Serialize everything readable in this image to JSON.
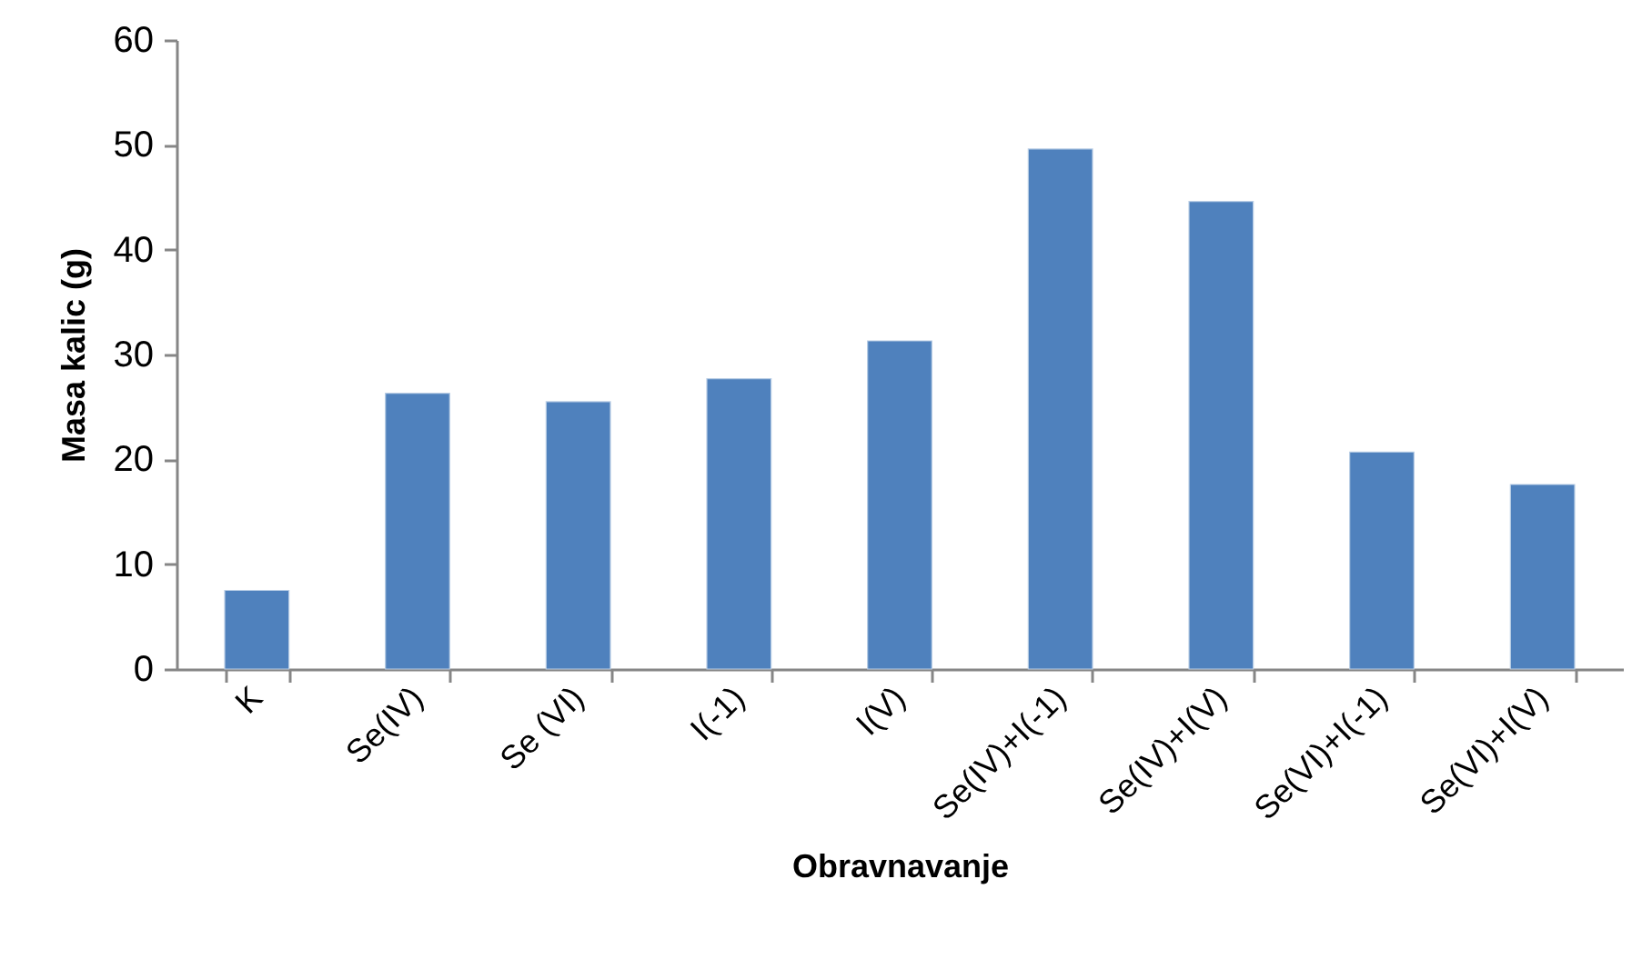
{
  "chart_data": {
    "type": "bar",
    "xlabel": "Obravnavanje",
    "ylabel": "Masa kalic (g)",
    "categories": [
      "K",
      "Se(IV)",
      "Se (VI)",
      "I(-1)",
      "I(V)",
      "Se(IV)+I(-1)",
      "Se(IV)+I(V)",
      "Se(VI)+I(-1)",
      "Se(VI)+I(V)"
    ],
    "values": [
      7.5,
      26.3,
      25.5,
      27.7,
      31.3,
      49.6,
      44.6,
      20.7,
      17.6
    ],
    "color": "#4f81bd",
    "ylim": [
      0,
      60
    ],
    "yticks": [
      0,
      10,
      20,
      30,
      40,
      50,
      60
    ],
    "grid": false
  }
}
